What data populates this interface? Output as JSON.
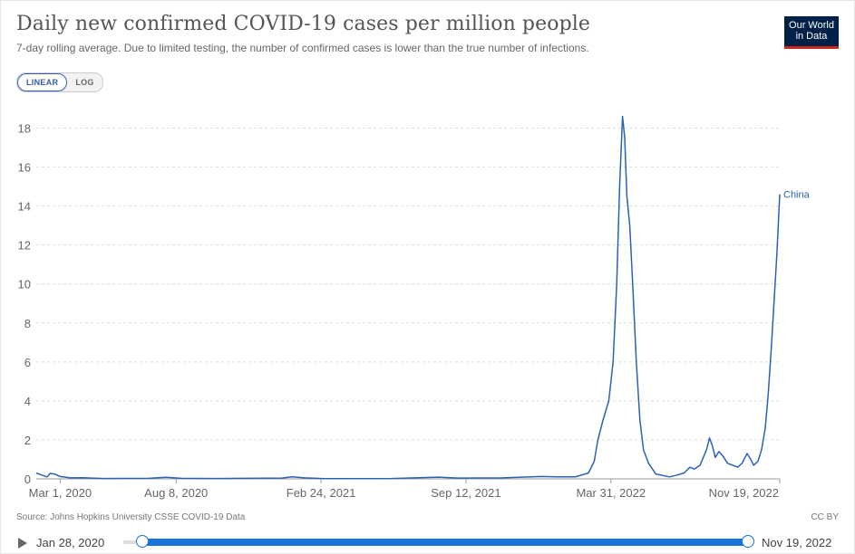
{
  "header": {
    "title": "Daily new confirmed COVID-19 cases per million people",
    "subtitle": "7-day rolling average. Due to limited testing, the number of confirmed cases is lower than the true number of infections.",
    "logo_line1": "Our World",
    "logo_line2": "in Data"
  },
  "controls": {
    "linear_label": "LINEAR",
    "log_label": "LOG",
    "active_scale": "linear"
  },
  "footer": {
    "source": "Source: Johns Hopkins University CSSE COVID-19 Data",
    "license": "CC BY"
  },
  "timeline": {
    "start_label": "Jan 28, 2020",
    "end_label": "Nov 19, 2022",
    "play_icon": "play-icon",
    "start_position": 0,
    "end_position": 1
  },
  "colors": {
    "series": "#2b62b4",
    "accent": "#1a73d9",
    "logo_bg": "#002147",
    "logo_bar": "#ce261e"
  },
  "chart_data": {
    "type": "line",
    "title": "Daily new confirmed COVID-19 cases per million people",
    "subtitle": "7-day rolling average. Due to limited testing, the number of confirmed cases is lower than the true number of infections.",
    "xlabel": "",
    "ylabel": "",
    "x_range": [
      "2020-01-28",
      "2022-11-19"
    ],
    "ylim": [
      0,
      19
    ],
    "y_ticks": [
      0,
      2,
      4,
      6,
      8,
      10,
      12,
      14,
      16,
      18
    ],
    "x_ticks": [
      "Mar 1, 2020",
      "Aug 8, 2020",
      "Feb 24, 2021",
      "Sep 12, 2021",
      "Mar 31, 2022",
      "Nov 19, 2022"
    ],
    "x_tick_dates": [
      "2020-03-01",
      "2020-08-08",
      "2021-02-24",
      "2021-09-12",
      "2022-03-31",
      "2022-11-19"
    ],
    "grid": "horizontal dashed",
    "legend": "inline label at line end",
    "series": [
      {
        "name": "China",
        "points": [
          [
            "2020-01-28",
            0.3
          ],
          [
            "2020-02-04",
            0.2
          ],
          [
            "2020-02-12",
            0.1
          ],
          [
            "2020-02-16",
            0.28
          ],
          [
            "2020-02-22",
            0.25
          ],
          [
            "2020-03-01",
            0.12
          ],
          [
            "2020-03-15",
            0.05
          ],
          [
            "2020-04-01",
            0.06
          ],
          [
            "2020-05-01",
            0.02
          ],
          [
            "2020-07-01",
            0.03
          ],
          [
            "2020-07-25",
            0.08
          ],
          [
            "2020-08-15",
            0.03
          ],
          [
            "2020-10-01",
            0.02
          ],
          [
            "2021-01-01",
            0.04
          ],
          [
            "2021-01-15",
            0.1
          ],
          [
            "2021-02-01",
            0.05
          ],
          [
            "2021-03-01",
            0.01
          ],
          [
            "2021-06-01",
            0.02
          ],
          [
            "2021-08-05",
            0.09
          ],
          [
            "2021-09-01",
            0.04
          ],
          [
            "2021-11-01",
            0.05
          ],
          [
            "2021-12-25",
            0.12
          ],
          [
            "2022-01-15",
            0.1
          ],
          [
            "2022-02-10",
            0.1
          ],
          [
            "2022-02-28",
            0.3
          ],
          [
            "2022-03-08",
            0.9
          ],
          [
            "2022-03-13",
            2.0
          ],
          [
            "2022-03-20",
            3.0
          ],
          [
            "2022-03-28",
            4.0
          ],
          [
            "2022-04-03",
            6.0
          ],
          [
            "2022-04-08",
            10.0
          ],
          [
            "2022-04-12",
            15.0
          ],
          [
            "2022-04-16",
            18.6
          ],
          [
            "2022-04-19",
            17.5
          ],
          [
            "2022-04-22",
            14.5
          ],
          [
            "2022-04-26",
            13.0
          ],
          [
            "2022-04-30",
            10.0
          ],
          [
            "2022-05-05",
            6.0
          ],
          [
            "2022-05-10",
            3.0
          ],
          [
            "2022-05-15",
            1.5
          ],
          [
            "2022-05-22",
            0.8
          ],
          [
            "2022-06-01",
            0.25
          ],
          [
            "2022-06-20",
            0.1
          ],
          [
            "2022-07-01",
            0.2
          ],
          [
            "2022-07-10",
            0.3
          ],
          [
            "2022-07-18",
            0.6
          ],
          [
            "2022-07-24",
            0.5
          ],
          [
            "2022-08-01",
            0.7
          ],
          [
            "2022-08-10",
            1.5
          ],
          [
            "2022-08-14",
            2.1
          ],
          [
            "2022-08-18",
            1.7
          ],
          [
            "2022-08-22",
            1.1
          ],
          [
            "2022-08-27",
            1.4
          ],
          [
            "2022-09-01",
            1.2
          ],
          [
            "2022-09-08",
            0.8
          ],
          [
            "2022-09-15",
            0.7
          ],
          [
            "2022-09-22",
            0.6
          ],
          [
            "2022-09-28",
            0.8
          ],
          [
            "2022-10-05",
            1.3
          ],
          [
            "2022-10-10",
            1.0
          ],
          [
            "2022-10-14",
            0.7
          ],
          [
            "2022-10-20",
            0.9
          ],
          [
            "2022-10-25",
            1.5
          ],
          [
            "2022-10-30",
            2.6
          ],
          [
            "2022-11-03",
            4.3
          ],
          [
            "2022-11-07",
            6.5
          ],
          [
            "2022-11-11",
            9.0
          ],
          [
            "2022-11-15",
            11.5
          ],
          [
            "2022-11-19",
            14.6
          ]
        ]
      }
    ]
  }
}
